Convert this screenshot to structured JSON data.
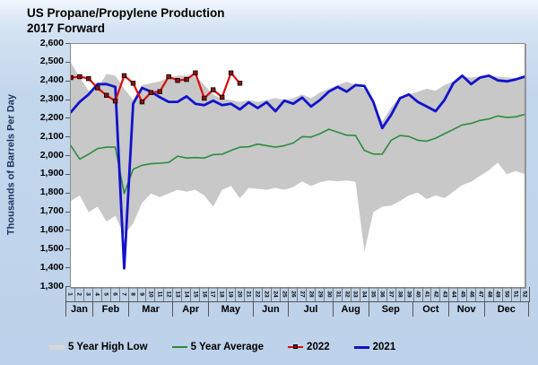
{
  "chart_data": {
    "type": "area+line",
    "title_line1": "US Propane/Propylene Production",
    "title_line2": "2017 Forward",
    "ylabel": "Thousands of Barrels Per Day",
    "ylim": [
      1300,
      2600
    ],
    "ytick_step": 100,
    "ytick_labels": [
      "2,600",
      "2,500",
      "2,400",
      "2,300",
      "2,200",
      "2,100",
      "2,000",
      "1,900",
      "1,800",
      "1,700",
      "1,600",
      "1,500",
      "1,400",
      "1,300"
    ],
    "grid": false,
    "weeks": 52,
    "week_labels": [
      "1",
      "2",
      "3",
      "4",
      "5",
      "6",
      "7",
      "8",
      "9",
      "10",
      "11",
      "12",
      "13",
      "14",
      "15",
      "16",
      "17",
      "18",
      "19",
      "20",
      "21",
      "22",
      "23",
      "24",
      "25",
      "26",
      "27",
      "28",
      "29",
      "30",
      "31",
      "32",
      "33",
      "34",
      "35",
      "36",
      "37",
      "38",
      "39",
      "40",
      "41",
      "42",
      "43",
      "44",
      "45",
      "46",
      "47",
      "48",
      "49",
      "50",
      "51",
      "52"
    ],
    "months": [
      {
        "label": "Jan",
        "weeks": 3
      },
      {
        "label": "Feb",
        "weeks": 4
      },
      {
        "label": "Mar",
        "weeks": 5
      },
      {
        "label": "Apr",
        "weeks": 4
      },
      {
        "label": "May",
        "weeks": 5
      },
      {
        "label": "Jun",
        "weeks": 4
      },
      {
        "label": "Jul",
        "weeks": 5
      },
      {
        "label": "Aug",
        "weeks": 4
      },
      {
        "label": "Sep",
        "weeks": 5
      },
      {
        "label": "Oct",
        "weeks": 4
      },
      {
        "label": "Nov",
        "weeks": 4
      },
      {
        "label": "Dec",
        "weeks": 5
      }
    ],
    "legend_position": "bottom",
    "series": [
      {
        "name": "5 Year High Low",
        "type": "band",
        "color": "#c8c8c8",
        "high": [
          2500,
          2420,
          2350,
          2360,
          2440,
          2430,
          2360,
          2300,
          2380,
          2390,
          2400,
          2420,
          2430,
          2430,
          2430,
          2380,
          2330,
          2305,
          2300,
          2290,
          2300,
          2290,
          2300,
          2310,
          2300,
          2310,
          2330,
          2310,
          2340,
          2360,
          2380,
          2398,
          2380,
          2360,
          2290,
          2185,
          2260,
          2320,
          2330,
          2345,
          2360,
          2350,
          2380,
          2400,
          2428,
          2420,
          2425,
          2432,
          2425,
          2420,
          2418,
          2425
        ],
        "low": [
          1760,
          1790,
          1700,
          1730,
          1650,
          1680,
          1580,
          1640,
          1750,
          1800,
          1780,
          1800,
          1820,
          1810,
          1820,
          1790,
          1730,
          1820,
          1840,
          1775,
          1830,
          1825,
          1820,
          1830,
          1820,
          1835,
          1865,
          1840,
          1860,
          1870,
          1865,
          1870,
          1863,
          1490,
          1700,
          1730,
          1735,
          1760,
          1790,
          1805,
          1770,
          1790,
          1775,
          1810,
          1845,
          1863,
          1895,
          1925,
          1965,
          1903,
          1920,
          1905
        ]
      },
      {
        "name": "5 Year Average",
        "type": "line",
        "color": "#2e8b3d",
        "width": 1.6,
        "values": [
          2056,
          1984,
          2010,
          2040,
          2048,
          2048,
          1800,
          1930,
          1951,
          1959,
          1962,
          1966,
          2000,
          1990,
          1992,
          1990,
          2008,
          2010,
          2030,
          2048,
          2050,
          2064,
          2056,
          2048,
          2056,
          2070,
          2104,
          2102,
          2120,
          2144,
          2128,
          2112,
          2110,
          2030,
          2011,
          2011,
          2085,
          2110,
          2105,
          2085,
          2080,
          2096,
          2120,
          2143,
          2167,
          2175,
          2191,
          2199,
          2215,
          2207,
          2210,
          2223
        ]
      },
      {
        "name": "2021",
        "type": "line",
        "color": "#1212cc",
        "width": 2.8,
        "values": [
          2235,
          2290,
          2330,
          2385,
          2385,
          2370,
          1400,
          2280,
          2365,
          2345,
          2315,
          2290,
          2290,
          2320,
          2280,
          2273,
          2297,
          2273,
          2280,
          2250,
          2287,
          2257,
          2288,
          2240,
          2297,
          2280,
          2313,
          2265,
          2300,
          2345,
          2370,
          2345,
          2380,
          2375,
          2290,
          2150,
          2220,
          2310,
          2330,
          2290,
          2265,
          2240,
          2300,
          2390,
          2430,
          2385,
          2420,
          2430,
          2405,
          2400,
          2410,
          2425
        ]
      },
      {
        "name": "2022",
        "type": "line",
        "color": "#dd0b0b",
        "width": 2.2,
        "marker": true,
        "marker_color": "#8f1010",
        "values": [
          2420,
          2425,
          2415,
          2365,
          2325,
          2295,
          2430,
          2390,
          2290,
          2340,
          2345,
          2425,
          2405,
          2410,
          2445,
          2310,
          2355,
          2315,
          2445,
          2390
        ]
      }
    ]
  }
}
